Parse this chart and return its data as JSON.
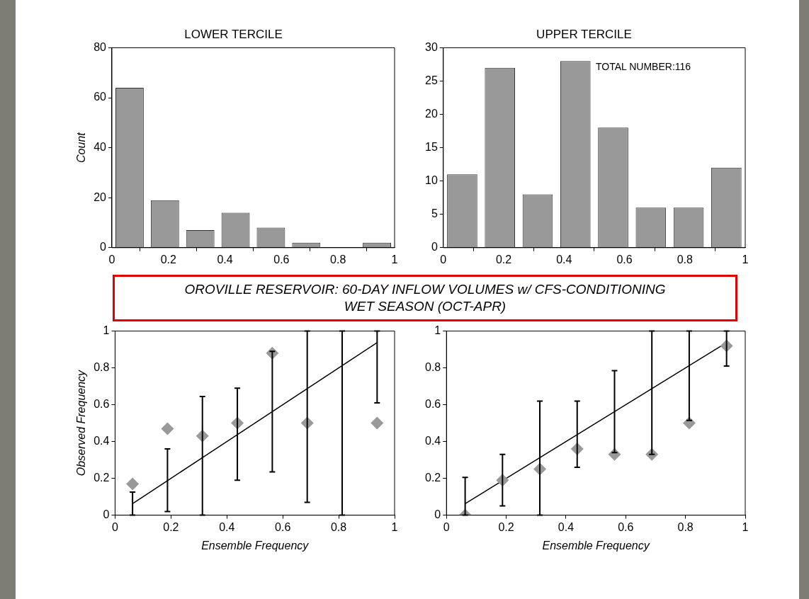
{
  "chart_data": [
    {
      "type": "bar",
      "title": "LOWER TERCILE",
      "ylabel": "Count",
      "x": [
        0.0625,
        0.1875,
        0.3125,
        0.4375,
        0.5625,
        0.6875,
        0.8125,
        0.9375
      ],
      "values": [
        64,
        19,
        7,
        14,
        8,
        2,
        0,
        2
      ],
      "color": "#999999",
      "xlim": [
        0,
        1
      ],
      "xticks": [
        0,
        0.2,
        0.4,
        0.6,
        0.8,
        1
      ],
      "ylim": [
        0,
        80
      ],
      "yticks": [
        0,
        20,
        40,
        60,
        80
      ],
      "grid": false,
      "legend": false
    },
    {
      "type": "bar",
      "title": "UPPER TERCILE",
      "x": [
        0.0625,
        0.1875,
        0.3125,
        0.4375,
        0.5625,
        0.6875,
        0.8125,
        0.9375
      ],
      "values": [
        11,
        27,
        8,
        28,
        18,
        6,
        6,
        12
      ],
      "color": "#999999",
      "xlim": [
        0,
        1
      ],
      "xticks": [
        0,
        0.2,
        0.4,
        0.6,
        0.8,
        1
      ],
      "ylim": [
        0,
        30
      ],
      "yticks": [
        0,
        5,
        10,
        15,
        20,
        25,
        30
      ],
      "annotations": [
        "TOTAL NUMBER:116"
      ],
      "grid": false,
      "legend": false
    },
    {
      "type": "other",
      "title": "OROVILLE RESERVOIR: 60-DAY INFLOW VOLUMES w/ CFS-CONDITIONING",
      "subtitle": "WET SEASON (OCT-APR)"
    },
    {
      "type": "scatter",
      "xlabel": "Ensemble Frequency",
      "ylabel": "Observed Frequency",
      "x": [
        0.0625,
        0.1875,
        0.3125,
        0.4375,
        0.5625,
        0.6875,
        0.8125,
        0.9375
      ],
      "series": [
        {
          "type": "scatter",
          "color": "#999999",
          "marker": "diamond",
          "values": [
            0.17,
            0.47,
            0.43,
            0.5,
            0.88,
            0.5,
            null,
            0.5
          ]
        },
        {
          "type": "line",
          "color": "#000000",
          "marker": "none",
          "values": [
            0.0625,
            0.1875,
            0.3125,
            0.4375,
            0.5625,
            0.6875,
            0.8125,
            0.9375
          ],
          "errors": [
            [
              0,
              0.125
            ],
            [
              0.02,
              0.36
            ],
            [
              0,
              0.645
            ],
            [
              0.19,
              0.69
            ],
            [
              0.235,
              0.89
            ],
            [
              0.07,
              1
            ],
            [
              0,
              1
            ],
            [
              0.61,
              1
            ]
          ]
        }
      ],
      "xlim": [
        0,
        1
      ],
      "xticks": [
        0,
        0.2,
        0.4,
        0.6,
        0.8,
        1
      ],
      "ylim": [
        0,
        1
      ],
      "yticks": [
        0,
        0.2,
        0.4,
        0.6,
        0.8,
        1
      ],
      "grid": false,
      "legend": false
    },
    {
      "type": "scatter",
      "xlabel": "Ensemble Frequency",
      "x": [
        0.0625,
        0.1875,
        0.3125,
        0.4375,
        0.5625,
        0.6875,
        0.8125,
        0.9375
      ],
      "series": [
        {
          "type": "scatter",
          "color": "#999999",
          "marker": "diamond",
          "values": [
            0,
            0.19,
            0.25,
            0.36,
            0.33,
            0.33,
            0.5,
            0.92
          ]
        },
        {
          "type": "line",
          "color": "#000000",
          "marker": "none",
          "values": [
            0.0625,
            0.1875,
            0.3125,
            0.4375,
            0.5625,
            0.6875,
            0.8125,
            0.9375
          ],
          "errors": [
            [
              0,
              0.205
            ],
            [
              0.05,
              0.33
            ],
            [
              0,
              0.62
            ],
            [
              0.26,
              0.62
            ],
            [
              0.34,
              0.785
            ],
            [
              0.33,
              1
            ],
            [
              0.515,
              1
            ],
            [
              0.81,
              1
            ]
          ]
        }
      ],
      "xlim": [
        0,
        1
      ],
      "xticks": [
        0,
        0.2,
        0.4,
        0.6,
        0.8,
        1
      ],
      "ylim": [
        0,
        1
      ],
      "yticks": [
        0,
        0.2,
        0.4,
        0.6,
        0.8,
        1
      ],
      "grid": false,
      "legend": false
    }
  ]
}
